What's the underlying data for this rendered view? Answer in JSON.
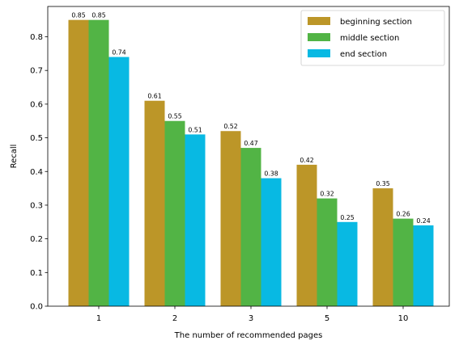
{
  "chart_data": {
    "type": "bar",
    "categories": [
      "1",
      "2",
      "3",
      "5",
      "10"
    ],
    "series": [
      {
        "name": "beginning section",
        "color": "#bc9628",
        "values": [
          0.85,
          0.61,
          0.52,
          0.42,
          0.35
        ]
      },
      {
        "name": "middle section",
        "color": "#52b445",
        "values": [
          0.85,
          0.55,
          0.47,
          0.32,
          0.26
        ]
      },
      {
        "name": "end section",
        "color": "#08b9e3",
        "values": [
          0.74,
          0.51,
          0.38,
          0.25,
          0.24
        ]
      }
    ],
    "xlabel": "The number of recommended pages",
    "ylabel": "Recall",
    "ylim": [
      0,
      0.89
    ],
    "yticks": [
      0.0,
      0.1,
      0.2,
      0.3,
      0.4,
      0.5,
      0.6,
      0.7,
      0.8
    ],
    "ytick_labels": [
      "0.0",
      "0.1",
      "0.2",
      "0.3",
      "0.4",
      "0.5",
      "0.6",
      "0.7",
      "0.8"
    ],
    "grid": false,
    "legend_position": "top-right",
    "data_labels": true
  }
}
